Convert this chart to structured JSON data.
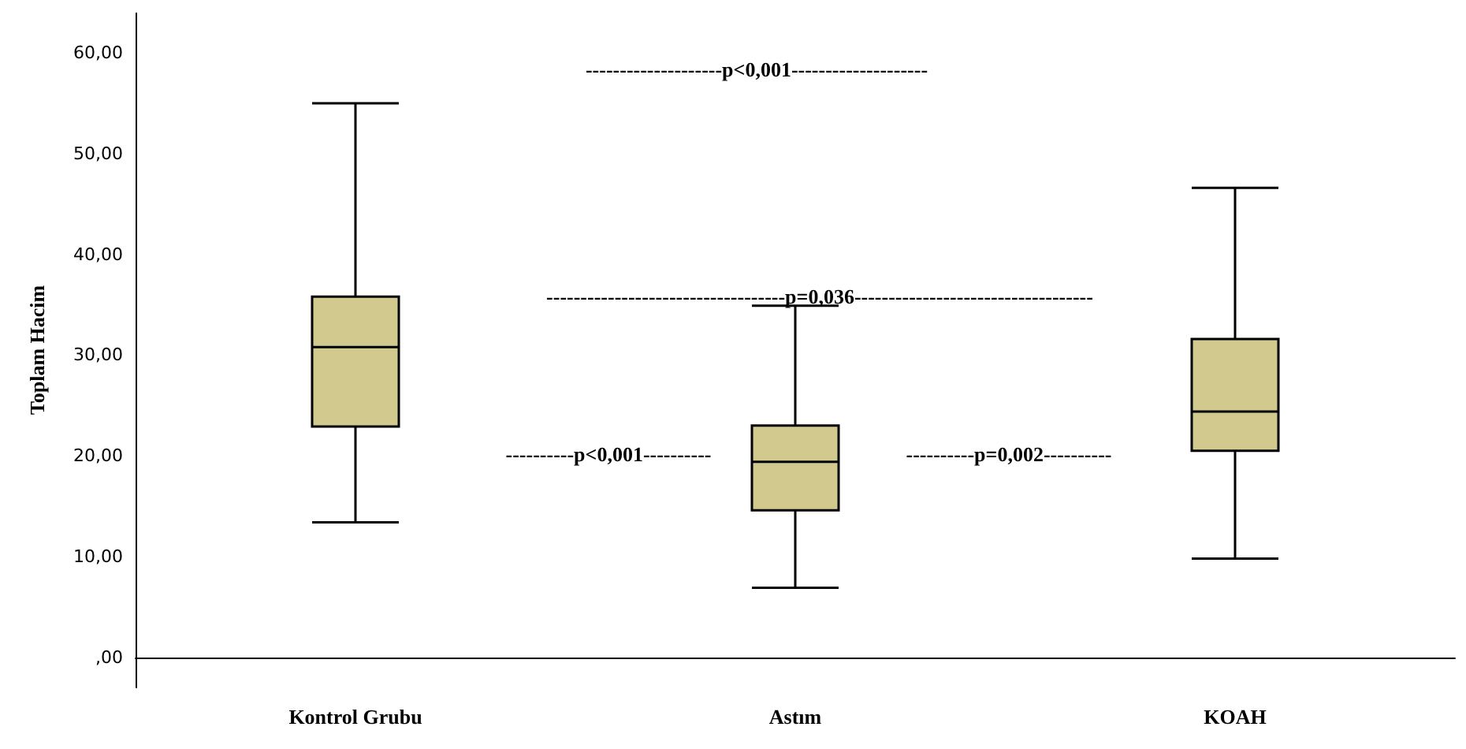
{
  "chart_data": {
    "type": "box",
    "ylabel": "Toplam Hacim",
    "categories": [
      "Kontrol Grubu",
      "Astım",
      "KOAH"
    ],
    "boxes": [
      {
        "low": 13.4,
        "q1": 22.9,
        "median": 30.8,
        "q3": 35.8,
        "high": 55
      },
      {
        "low": 6.9,
        "q1": 14.6,
        "median": 19.4,
        "q3": 23.0,
        "high": 34.9
      },
      {
        "low": 9.8,
        "q1": 20.5,
        "median": 24.4,
        "q3": 31.6,
        "high": 46.6
      }
    ],
    "color": "#d2c98f",
    "ylim": [
      -3,
      64
    ],
    "yticks": [
      {
        "value": 0,
        "label": ",00"
      },
      {
        "value": 10,
        "label": "10,00"
      },
      {
        "value": 20,
        "label": "20,00"
      },
      {
        "value": 30,
        "label": "30,00"
      },
      {
        "value": 40,
        "label": "40,00"
      },
      {
        "value": 50,
        "label": "50,00"
      },
      {
        "value": 60,
        "label": "60,00"
      }
    ],
    "annotations": [
      "--------------------p<0,001--------------------",
      "-----------------------------------p=0,036-----------------------------------",
      "----------p<0,001----------",
      "----------p=0,002----------"
    ],
    "grid": false
  }
}
